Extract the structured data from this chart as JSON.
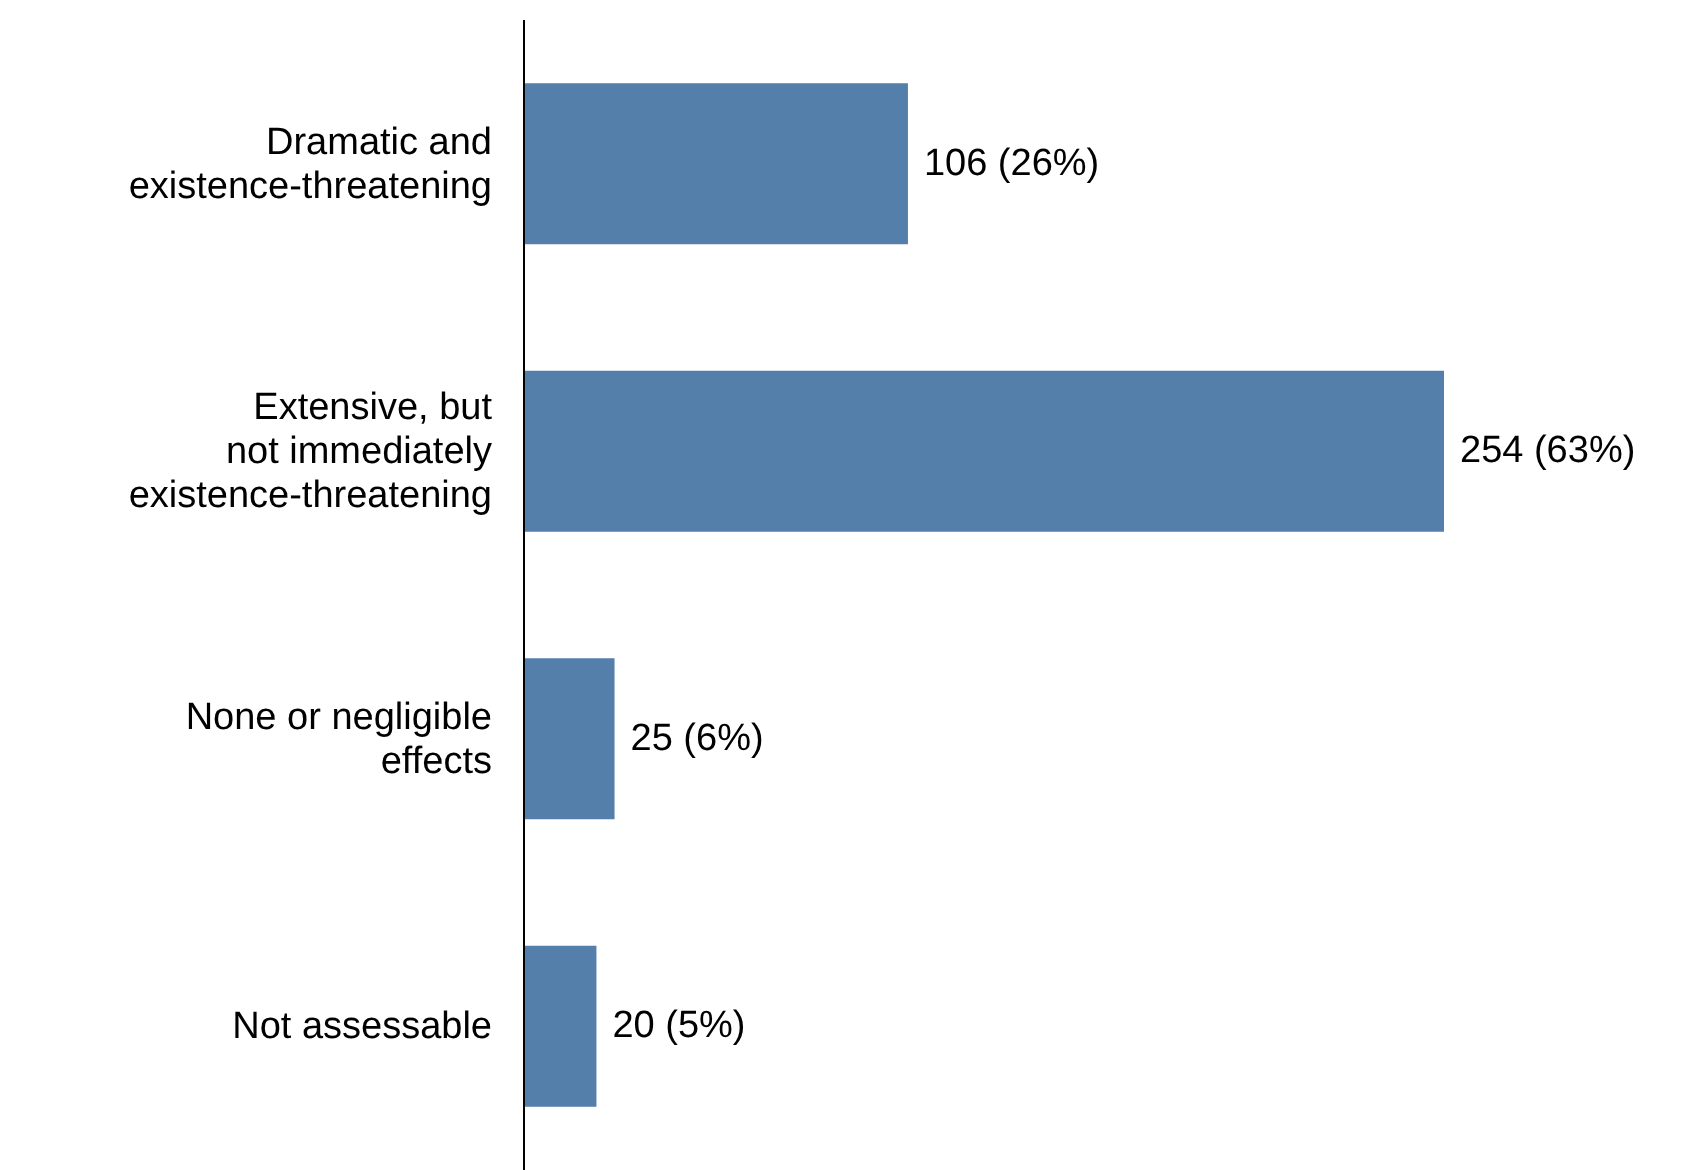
{
  "chart_data": {
    "type": "bar",
    "orientation": "horizontal",
    "categories": [
      "Dramatic and\nexistence-threatening",
      "Extensive, but\nnot immediately\nexistence-threatening",
      "None or negligible\neffects",
      "Not assessable"
    ],
    "values": [
      106,
      254,
      25,
      20
    ],
    "value_labels": [
      "106 (26%)",
      "254 (63%)",
      "25 (6%)",
      "20 (5%)"
    ],
    "color": "#557fab"
  }
}
